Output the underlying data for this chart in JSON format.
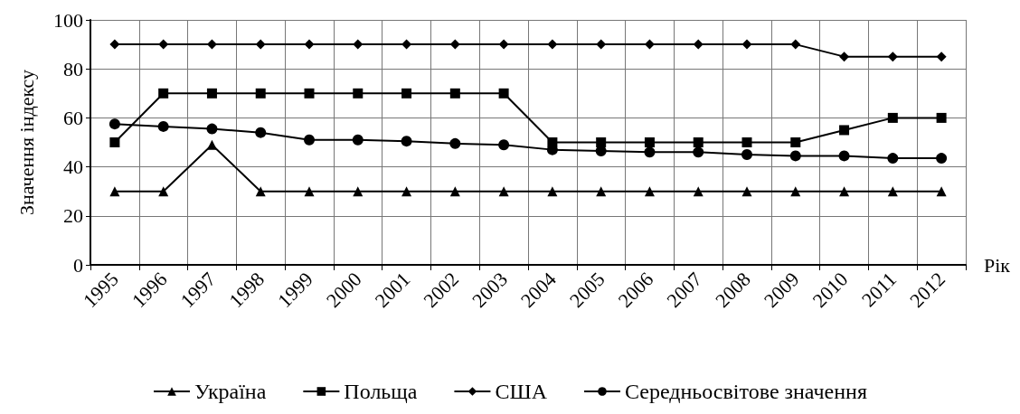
{
  "chart_data": {
    "type": "line",
    "ylabel": "Значення індексу",
    "xlabel": "Рік",
    "categories": [
      "1995",
      "1996",
      "1997",
      "1998",
      "1999",
      "2000",
      "2001",
      "2002",
      "2003",
      "2004",
      "2005",
      "2006",
      "2007",
      "2008",
      "2009",
      "2010",
      "2011",
      "2012"
    ],
    "series": [
      {
        "name": "Україна",
        "color": "#000000",
        "marker": "triangle",
        "values": [
          30,
          30,
          49,
          30,
          30,
          30,
          30,
          30,
          30,
          30,
          30,
          30,
          30,
          30,
          30,
          30,
          30,
          30
        ]
      },
      {
        "name": "Польща",
        "color": "#000000",
        "marker": "square",
        "values": [
          50,
          70,
          70,
          70,
          70,
          70,
          70,
          70,
          70,
          50,
          50,
          50,
          50,
          50,
          50,
          55,
          60,
          60
        ]
      },
      {
        "name": "США",
        "color": "#000000",
        "marker": "diamond",
        "values": [
          90,
          90,
          90,
          90,
          90,
          90,
          90,
          90,
          90,
          90,
          90,
          90,
          90,
          90,
          90,
          85,
          85,
          85
        ]
      },
      {
        "name": "Середньосвітове значення",
        "color": "#000000",
        "marker": "circle",
        "values": [
          57.5,
          56.5,
          55.5,
          54,
          51,
          51,
          50.5,
          49.5,
          49,
          47,
          46.5,
          46,
          46,
          45,
          44.5,
          44.5,
          43.5,
          43.5
        ]
      }
    ],
    "ylim": [
      0,
      100
    ],
    "yticks": [
      0,
      20,
      40,
      60,
      80,
      100
    ],
    "grid": true,
    "legend": "bottom",
    "line_style": "solid"
  }
}
